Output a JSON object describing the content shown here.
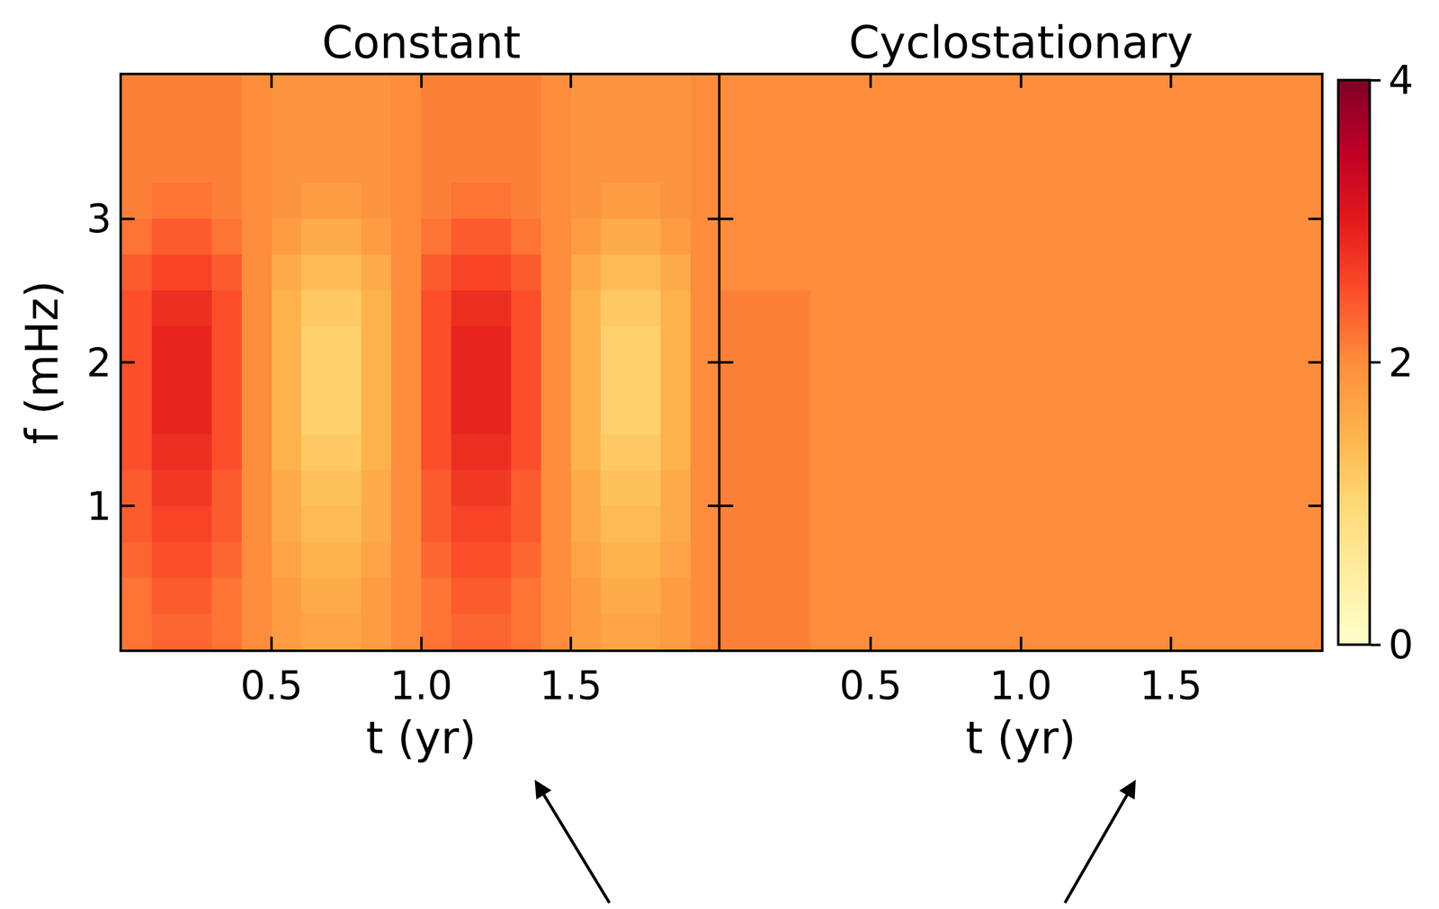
{
  "chart_data": [
    {
      "type": "heatmap",
      "title": "Constant",
      "x_label": "t (yr)",
      "y_label": "f (mHz)",
      "xlim": [
        0,
        2
      ],
      "ylim": [
        0,
        4
      ],
      "xticks": [
        0.5,
        {
          "value": 1,
          "label": "1.0"
        },
        1.5
      ],
      "yticks": [
        1,
        2,
        3
      ],
      "x": [
        0.05,
        0.15,
        0.25,
        0.35,
        0.45,
        0.55,
        0.65,
        0.75,
        0.85,
        0.95,
        1.05,
        1.15,
        1.25,
        1.35,
        1.45,
        1.55,
        1.65,
        1.75,
        1.85,
        1.95
      ],
      "y": [
        0.125,
        0.375,
        0.625,
        0.875,
        1.125,
        1.375,
        1.625,
        1.875,
        2.125,
        2.375,
        2.625,
        2.875,
        3.125,
        3.375,
        3.625,
        3.875
      ],
      "z": [
        [
          2.2,
          2.3,
          2.3,
          2.2,
          2.0,
          1.8,
          1.7,
          1.7,
          1.8,
          2.0,
          2.2,
          2.3,
          2.3,
          2.2,
          2.0,
          1.8,
          1.7,
          1.7,
          1.8,
          2.0
        ],
        [
          2.2,
          2.4,
          2.4,
          2.2,
          2.0,
          1.8,
          1.6,
          1.6,
          1.8,
          2.0,
          2.2,
          2.4,
          2.4,
          2.2,
          2.0,
          1.8,
          1.6,
          1.6,
          1.8,
          2.0
        ],
        [
          2.3,
          2.5,
          2.5,
          2.3,
          2.0,
          1.7,
          1.5,
          1.5,
          1.7,
          2.0,
          2.3,
          2.5,
          2.5,
          2.3,
          2.0,
          1.7,
          1.5,
          1.5,
          1.7,
          2.0
        ],
        [
          2.4,
          2.6,
          2.6,
          2.4,
          2.0,
          1.6,
          1.4,
          1.4,
          1.6,
          2.0,
          2.4,
          2.6,
          2.6,
          2.4,
          2.0,
          1.6,
          1.4,
          1.4,
          1.6,
          2.0
        ],
        [
          2.4,
          2.7,
          2.7,
          2.4,
          2.0,
          1.6,
          1.3,
          1.3,
          1.6,
          2.0,
          2.4,
          2.7,
          2.7,
          2.4,
          2.0,
          1.6,
          1.3,
          1.3,
          1.6,
          2.0
        ],
        [
          2.5,
          2.8,
          2.8,
          2.5,
          2.0,
          1.5,
          1.2,
          1.2,
          1.5,
          2.0,
          2.5,
          2.8,
          2.8,
          2.5,
          2.0,
          1.5,
          1.2,
          1.2,
          1.5,
          2.0
        ],
        [
          2.5,
          2.9,
          2.9,
          2.5,
          2.0,
          1.5,
          1.1,
          1.1,
          1.5,
          2.0,
          2.5,
          2.9,
          2.9,
          2.5,
          2.0,
          1.5,
          1.1,
          1.1,
          1.5,
          2.0
        ],
        [
          2.5,
          2.9,
          2.9,
          2.5,
          2.0,
          1.5,
          1.1,
          1.1,
          1.5,
          2.0,
          2.5,
          2.9,
          2.9,
          2.5,
          2.0,
          1.5,
          1.1,
          1.1,
          1.5,
          2.0
        ],
        [
          2.5,
          2.9,
          2.9,
          2.5,
          2.0,
          1.5,
          1.1,
          1.1,
          1.5,
          2.0,
          2.5,
          2.9,
          2.9,
          2.5,
          2.0,
          1.5,
          1.1,
          1.1,
          1.5,
          2.0
        ],
        [
          2.5,
          2.8,
          2.8,
          2.5,
          2.0,
          1.5,
          1.2,
          1.2,
          1.5,
          2.0,
          2.5,
          2.8,
          2.8,
          2.5,
          2.0,
          1.5,
          1.2,
          1.2,
          1.5,
          2.0
        ],
        [
          2.4,
          2.6,
          2.6,
          2.4,
          2.0,
          1.6,
          1.4,
          1.4,
          1.6,
          2.0,
          2.4,
          2.6,
          2.6,
          2.4,
          2.0,
          1.6,
          1.4,
          1.4,
          1.6,
          2.0
        ],
        [
          2.2,
          2.4,
          2.4,
          2.2,
          2.0,
          1.8,
          1.6,
          1.6,
          1.8,
          2.0,
          2.2,
          2.4,
          2.4,
          2.2,
          2.0,
          1.8,
          1.6,
          1.6,
          1.8,
          2.0
        ],
        [
          2.1,
          2.2,
          2.2,
          2.1,
          2.0,
          1.9,
          1.8,
          1.8,
          1.9,
          2.0,
          2.1,
          2.2,
          2.2,
          2.1,
          2.0,
          1.9,
          1.8,
          1.8,
          1.9,
          2.0
        ],
        [
          2.1,
          2.1,
          2.1,
          2.1,
          2.0,
          1.9,
          1.9,
          1.9,
          1.9,
          2.0,
          2.1,
          2.1,
          2.1,
          2.1,
          2.0,
          1.9,
          1.9,
          1.9,
          1.9,
          2.0
        ],
        [
          2.1,
          2.1,
          2.1,
          2.1,
          2.0,
          1.9,
          1.9,
          1.9,
          1.9,
          2.0,
          2.1,
          2.1,
          2.1,
          2.1,
          2.0,
          1.9,
          1.9,
          1.9,
          1.9,
          2.0
        ],
        [
          2.1,
          2.1,
          2.1,
          2.1,
          2.0,
          1.9,
          1.9,
          1.9,
          1.9,
          2.0,
          2.1,
          2.1,
          2.1,
          2.1,
          2.0,
          1.9,
          1.9,
          1.9,
          1.9,
          2.0
        ]
      ]
    },
    {
      "type": "heatmap",
      "title": "Cyclostationary",
      "x_label": "t (yr)",
      "xlim": [
        0,
        2
      ],
      "ylim": [
        0,
        4
      ],
      "xticks": [
        0.5,
        {
          "value": 1,
          "label": "1.0"
        },
        1.5
      ],
      "yticks": [
        1,
        2,
        3
      ],
      "tick_labels": "x",
      "x": [
        0.05,
        0.15,
        0.25,
        0.35,
        0.45,
        0.55,
        0.65,
        0.75,
        0.85,
        0.95,
        1.05,
        1.15,
        1.25,
        1.35,
        1.45,
        1.55,
        1.65,
        1.75,
        1.85,
        1.95
      ],
      "y": [
        0.125,
        0.375,
        0.625,
        0.875,
        1.125,
        1.375,
        1.625,
        1.875,
        2.125,
        2.375,
        2.625,
        2.875,
        3.125,
        3.375,
        3.625,
        3.875
      ],
      "z": [
        [
          2.1,
          2.1,
          2.1,
          2.0,
          2.0,
          2.0,
          2.0,
          2.0,
          2.0,
          2.0,
          2.0,
          2.0,
          2.0,
          2.0,
          2.0,
          2.0,
          2.0,
          2.0,
          2.0,
          2.0
        ],
        [
          2.1,
          2.1,
          2.1,
          2.0,
          2.0,
          2.0,
          2.0,
          2.0,
          2.0,
          2.0,
          2.0,
          2.0,
          2.0,
          2.0,
          2.0,
          2.0,
          2.0,
          2.0,
          2.0,
          2.0
        ],
        [
          2.1,
          2.1,
          2.1,
          2.0,
          2.0,
          2.0,
          2.0,
          2.0,
          2.0,
          2.0,
          2.0,
          2.0,
          2.0,
          2.0,
          2.0,
          2.0,
          2.0,
          2.0,
          2.0,
          2.0
        ],
        [
          2.1,
          2.1,
          2.1,
          2.0,
          2.0,
          2.0,
          2.0,
          2.0,
          2.0,
          2.0,
          2.0,
          2.0,
          2.0,
          2.0,
          2.0,
          2.0,
          2.0,
          2.0,
          2.0,
          2.0
        ],
        [
          2.1,
          2.1,
          2.1,
          2.0,
          2.0,
          2.0,
          2.0,
          2.0,
          2.0,
          2.0,
          2.0,
          2.0,
          2.0,
          2.0,
          2.0,
          2.0,
          2.0,
          2.0,
          2.0,
          2.0
        ],
        [
          2.1,
          2.1,
          2.1,
          2.0,
          2.0,
          2.0,
          2.0,
          2.0,
          2.0,
          2.0,
          2.0,
          2.0,
          2.0,
          2.0,
          2.0,
          2.0,
          2.0,
          2.0,
          2.0,
          2.0
        ],
        [
          2.1,
          2.1,
          2.1,
          2.0,
          2.0,
          2.0,
          2.0,
          2.0,
          2.0,
          2.0,
          2.0,
          2.0,
          2.0,
          2.0,
          2.0,
          2.0,
          2.0,
          2.0,
          2.0,
          2.0
        ],
        [
          2.1,
          2.1,
          2.1,
          2.0,
          2.0,
          2.0,
          2.0,
          2.0,
          2.0,
          2.0,
          2.0,
          2.0,
          2.0,
          2.0,
          2.0,
          2.0,
          2.0,
          2.0,
          2.0,
          2.0
        ],
        [
          2.1,
          2.1,
          2.1,
          2.0,
          2.0,
          2.0,
          2.0,
          2.0,
          2.0,
          2.0,
          2.0,
          2.0,
          2.0,
          2.0,
          2.0,
          2.0,
          2.0,
          2.0,
          2.0,
          2.0
        ],
        [
          2.1,
          2.1,
          2.1,
          2.0,
          2.0,
          2.0,
          2.0,
          2.0,
          2.0,
          2.0,
          2.0,
          2.0,
          2.0,
          2.0,
          2.0,
          2.0,
          2.0,
          2.0,
          2.0,
          2.0
        ],
        [
          2.0,
          2.0,
          2.0,
          2.0,
          2.0,
          2.0,
          2.0,
          2.0,
          2.0,
          2.0,
          2.0,
          2.0,
          2.0,
          2.0,
          2.0,
          2.0,
          2.0,
          2.0,
          2.0,
          2.0
        ],
        [
          2.0,
          2.0,
          2.0,
          2.0,
          2.0,
          2.0,
          2.0,
          2.0,
          2.0,
          2.0,
          2.0,
          2.0,
          2.0,
          2.0,
          2.0,
          2.0,
          2.0,
          2.0,
          2.0,
          2.0
        ],
        [
          2.0,
          2.0,
          2.0,
          2.0,
          2.0,
          2.0,
          2.0,
          2.0,
          2.0,
          2.0,
          2.0,
          2.0,
          2.0,
          2.0,
          2.0,
          2.0,
          2.0,
          2.0,
          2.0,
          2.0
        ],
        [
          2.0,
          2.0,
          2.0,
          2.0,
          2.0,
          2.0,
          2.0,
          2.0,
          2.0,
          2.0,
          2.0,
          2.0,
          2.0,
          2.0,
          2.0,
          2.0,
          2.0,
          2.0,
          2.0,
          2.0
        ],
        [
          2.0,
          2.0,
          2.0,
          2.0,
          2.0,
          2.0,
          2.0,
          2.0,
          2.0,
          2.0,
          2.0,
          2.0,
          2.0,
          2.0,
          2.0,
          2.0,
          2.0,
          2.0,
          2.0,
          2.0
        ],
        [
          2.0,
          2.0,
          2.0,
          2.0,
          2.0,
          2.0,
          2.0,
          2.0,
          2.0,
          2.0,
          2.0,
          2.0,
          2.0,
          2.0,
          2.0,
          2.0,
          2.0,
          2.0,
          2.0,
          2.0
        ]
      ],
      "colorbar": {
        "range": [
          0,
          4
        ],
        "ticks": [
          0,
          2,
          4
        ]
      }
    }
  ]
}
